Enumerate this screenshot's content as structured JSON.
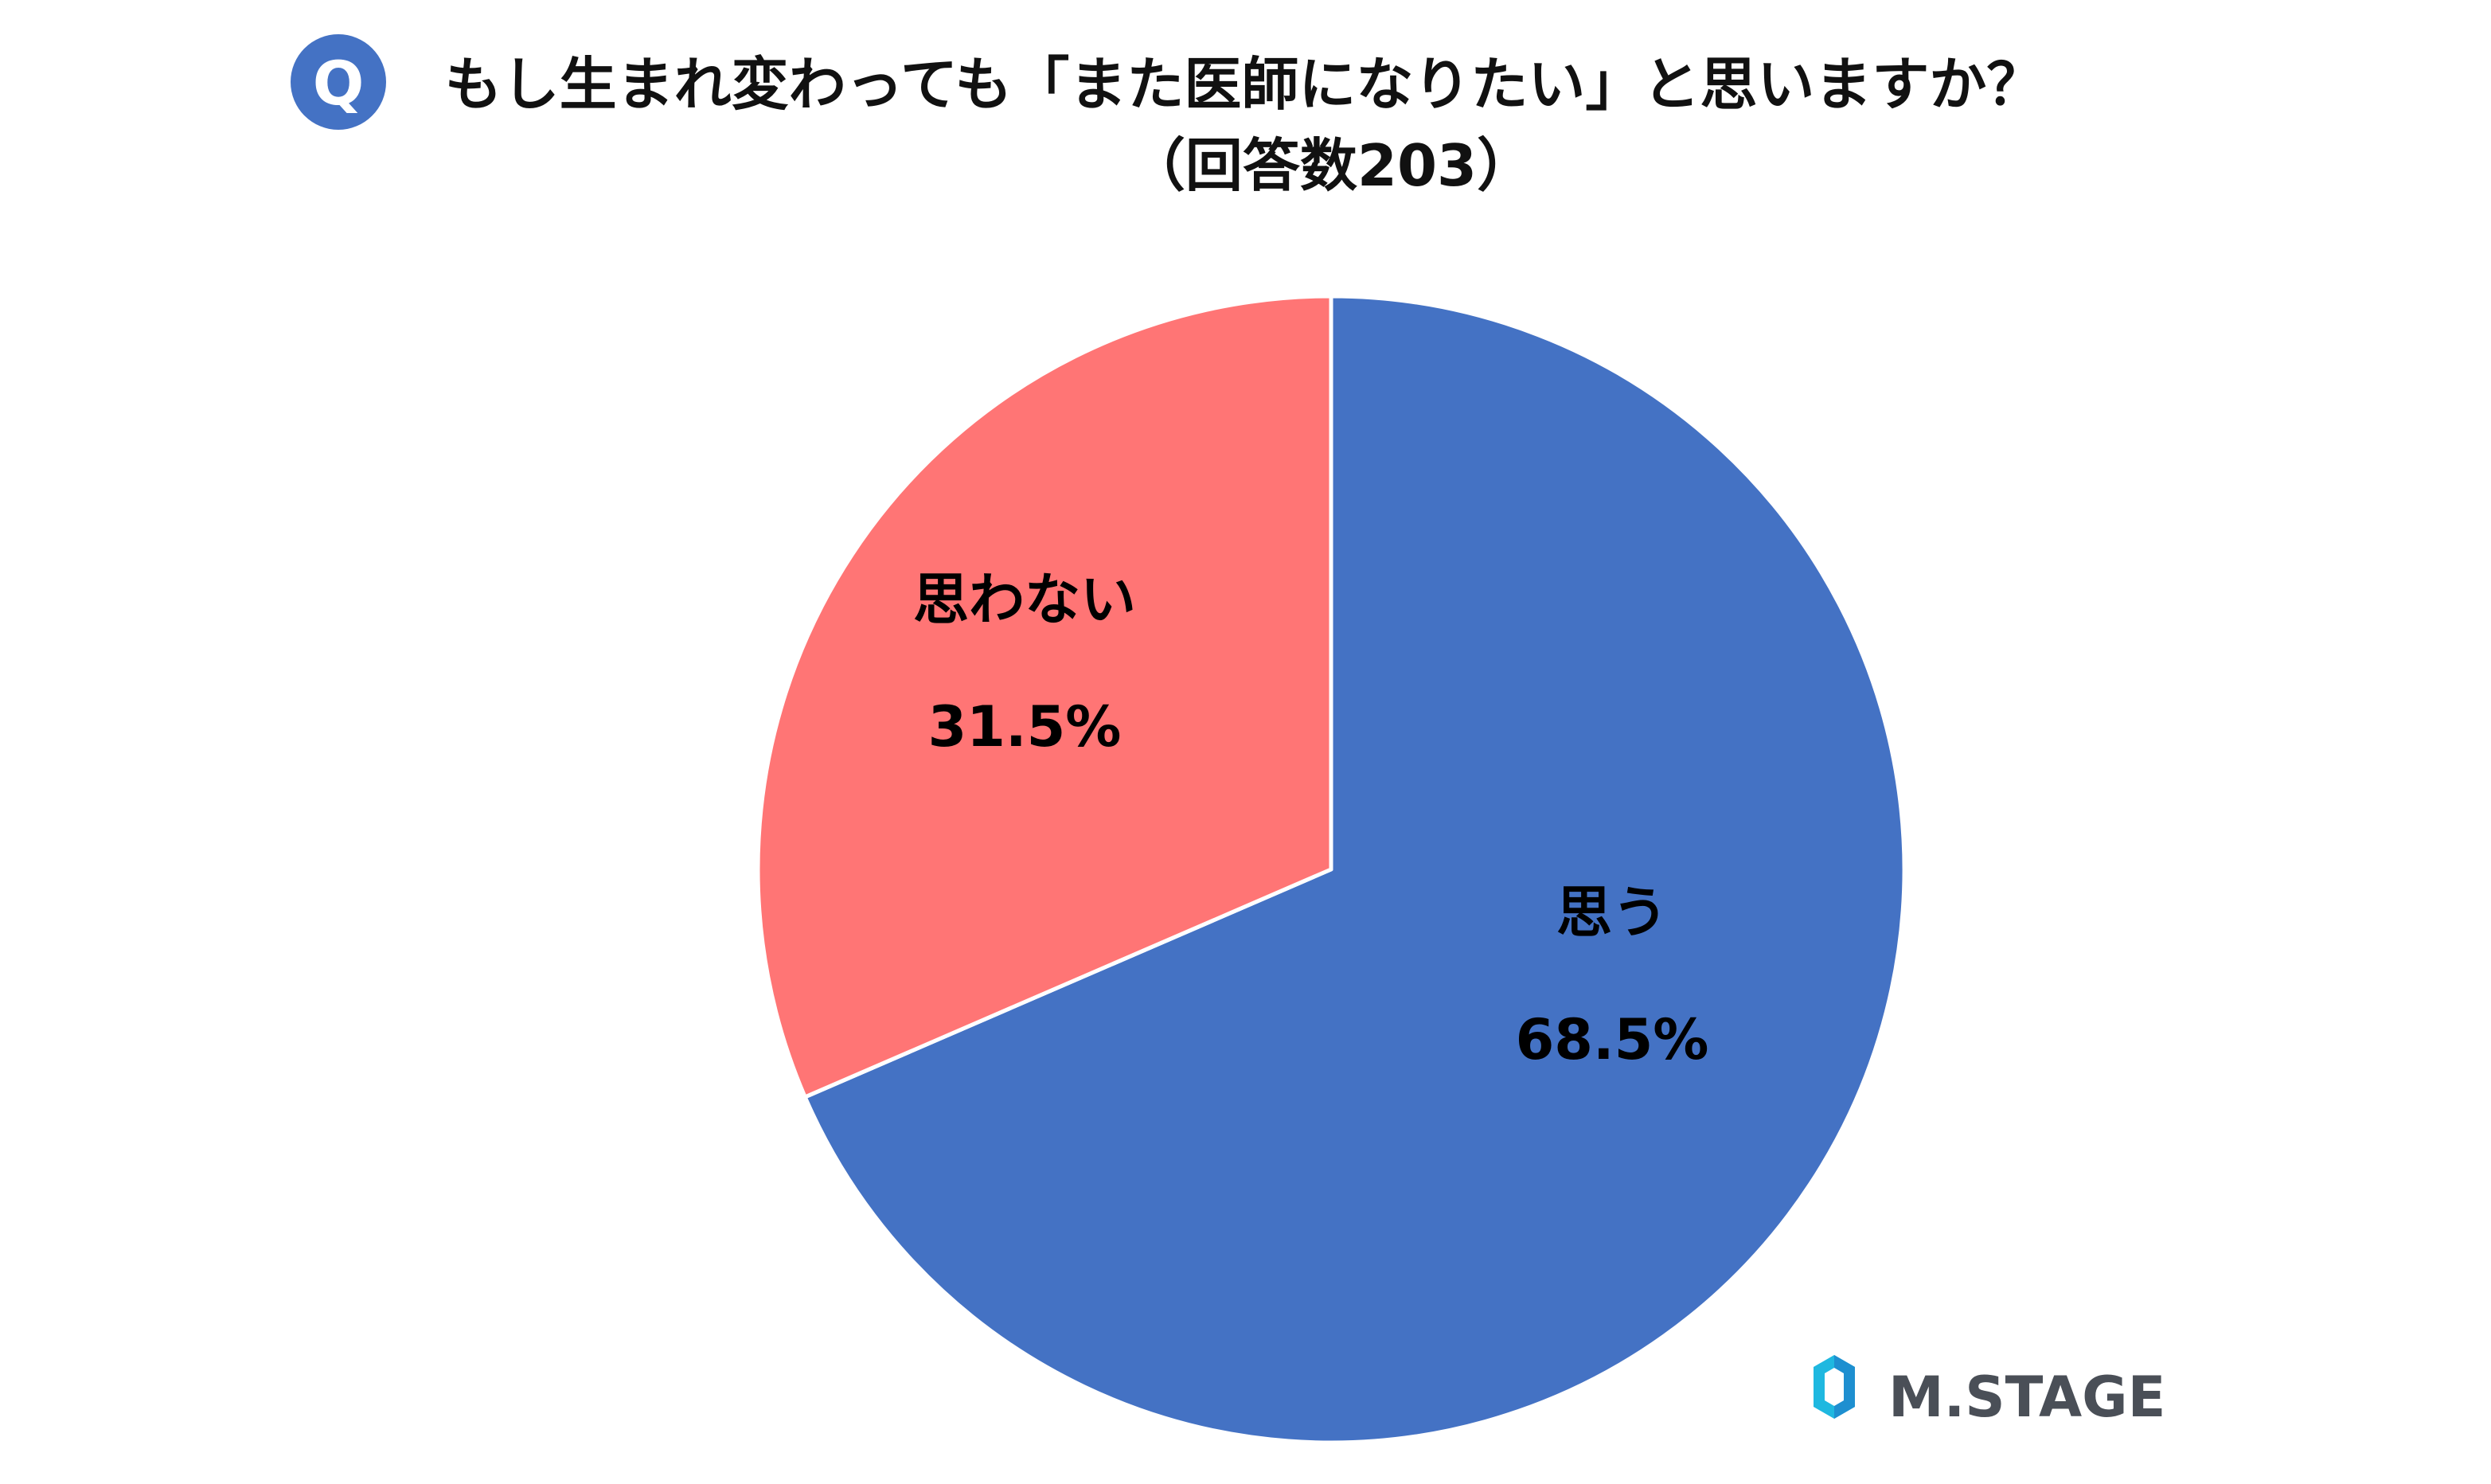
{
  "chart_data": {
    "type": "pie",
    "title_badge": "Q",
    "title": "もし生まれ変わっても「また医師になりたい」と思いますか？",
    "subtitle": "（回答数203）",
    "start_angle_deg": 0,
    "direction": "clockwise",
    "slices": [
      {
        "label": "思う",
        "value": 68.5,
        "value_label": "68.5%",
        "color": "#4472C4"
      },
      {
        "label": "思わない",
        "value": 31.5,
        "value_label": "31.5%",
        "color": "#FF7575"
      }
    ]
  },
  "logo": {
    "text": "M.STAGE",
    "colors": {
      "primary": "#1E8FD0",
      "secondary": "#1FB8E0",
      "text": "#4a4f57"
    }
  },
  "colors": {
    "badge": "#4472C4",
    "slice_border": "#ffffff"
  }
}
